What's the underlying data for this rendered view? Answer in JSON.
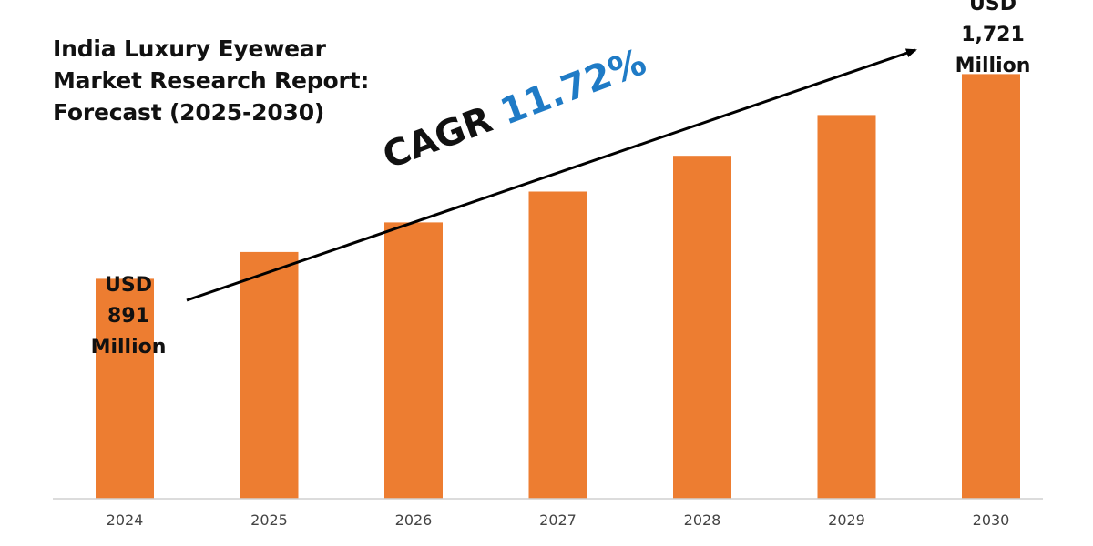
{
  "chart_data": {
    "type": "bar",
    "title_lines": [
      "India Luxury Eyewear",
      "Market Research Report:",
      "Forecast (2025-2030)"
    ],
    "categories": [
      "2024",
      "2025",
      "2026",
      "2027",
      "2028",
      "2029",
      "2030"
    ],
    "values": [
      891,
      1000,
      1120,
      1245,
      1390,
      1555,
      1721
    ],
    "ylim": [
      0,
      1800
    ],
    "xlabel": "",
    "ylabel": "",
    "grid": false,
    "legend": "none",
    "colors": {
      "bar": "#ed7d31",
      "axis": "#d0d0d0",
      "text": "#111111",
      "tick_text": "#444444",
      "cagr_accent": "#1f7bc6",
      "arrow": "#000000"
    },
    "annotations": {
      "start": [
        "USD",
        "891",
        "Million"
      ],
      "end": [
        "USD",
        "1,721",
        "Million"
      ],
      "cagr_label": "CAGR",
      "cagr_value": "11.72%"
    }
  }
}
